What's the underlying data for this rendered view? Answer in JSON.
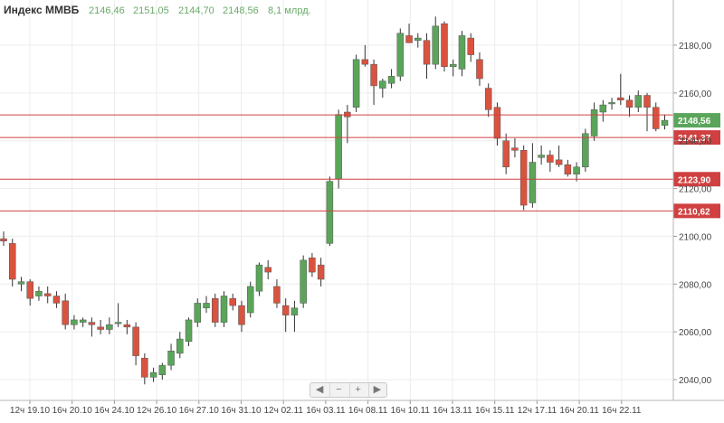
{
  "header": {
    "title": "Индекс ММВБ",
    "open": "2146,46",
    "high": "2151,05",
    "low": "2144,70",
    "close": "2148,56",
    "volume": "8,1 млрд."
  },
  "zoom_controls": {
    "left": "◀",
    "zoom_out": "−",
    "zoom_in": "+",
    "right": "▶"
  },
  "colors": {
    "up": "#5aa55a",
    "down": "#d9533f",
    "level_line": "#d04040",
    "last_price": "#5aa55a",
    "title": "#333333",
    "quote": "#6aaa6a"
  },
  "chart_data": {
    "type": "candlestick",
    "y_axis_side": "right",
    "ylim": [
      2035,
      2200
    ],
    "y_ticks": [
      2040,
      2060,
      2080,
      2100,
      2120,
      2140,
      2160,
      2180
    ],
    "y_tick_labels": [
      "2040,00",
      "2060,00",
      "2080,00",
      "2100,00",
      "2120,00",
      "2140,00",
      "2160,00",
      "2180,00"
    ],
    "x_tick_labels": [
      "12ч 19.10",
      "16ч 20.10",
      "16ч 24.10",
      "12ч 26.10",
      "16ч 27.10",
      "16ч 31.10",
      "12ч 02.11",
      "16ч 03.11",
      "16ч 08.11",
      "16ч 10.11",
      "16ч 13.11",
      "16ч 15.11",
      "12ч 17.11",
      "16ч 20.11",
      "16ч 22.11"
    ],
    "grid": true,
    "last_price": {
      "value": 2148.56,
      "label": "2148,56"
    },
    "levels": [
      {
        "value": 2141.37,
        "label": "2141,37"
      },
      {
        "value": 2123.9,
        "label": "2123,90"
      },
      {
        "value": 2110.62,
        "label": "2110,62"
      }
    ],
    "level_extra": {
      "value": 2150.8
    },
    "candles": [
      {
        "o": 2099,
        "h": 2102,
        "l": 2096,
        "c": 2098
      },
      {
        "o": 2097,
        "h": 2099,
        "l": 2079,
        "c": 2082
      },
      {
        "o": 2080,
        "h": 2083,
        "l": 2077,
        "c": 2081
      },
      {
        "o": 2081,
        "h": 2082,
        "l": 2071,
        "c": 2074
      },
      {
        "o": 2075,
        "h": 2079,
        "l": 2073,
        "c": 2077
      },
      {
        "o": 2076,
        "h": 2079,
        "l": 2072,
        "c": 2075
      },
      {
        "o": 2075,
        "h": 2077,
        "l": 2070,
        "c": 2072
      },
      {
        "o": 2073,
        "h": 2076,
        "l": 2061,
        "c": 2063
      },
      {
        "o": 2063,
        "h": 2067,
        "l": 2061,
        "c": 2065
      },
      {
        "o": 2064,
        "h": 2066,
        "l": 2062,
        "c": 2065
      },
      {
        "o": 2064,
        "h": 2066,
        "l": 2058,
        "c": 2063
      },
      {
        "o": 2062,
        "h": 2065,
        "l": 2059,
        "c": 2061
      },
      {
        "o": 2061,
        "h": 2066,
        "l": 2059,
        "c": 2063
      },
      {
        "o": 2064,
        "h": 2072,
        "l": 2062,
        "c": 2064
      },
      {
        "o": 2063,
        "h": 2065,
        "l": 2059,
        "c": 2062
      },
      {
        "o": 2062,
        "h": 2064,
        "l": 2046,
        "c": 2050
      },
      {
        "o": 2049,
        "h": 2051,
        "l": 2038,
        "c": 2041
      },
      {
        "o": 2041,
        "h": 2045,
        "l": 2039,
        "c": 2043
      },
      {
        "o": 2042,
        "h": 2047,
        "l": 2040,
        "c": 2046
      },
      {
        "o": 2046,
        "h": 2055,
        "l": 2044,
        "c": 2052
      },
      {
        "o": 2051,
        "h": 2060,
        "l": 2049,
        "c": 2057
      },
      {
        "o": 2056,
        "h": 2066,
        "l": 2054,
        "c": 2065
      },
      {
        "o": 2064,
        "h": 2074,
        "l": 2062,
        "c": 2072
      },
      {
        "o": 2070,
        "h": 2075,
        "l": 2068,
        "c": 2072
      },
      {
        "o": 2074,
        "h": 2076,
        "l": 2062,
        "c": 2064
      },
      {
        "o": 2064,
        "h": 2077,
        "l": 2062,
        "c": 2075
      },
      {
        "o": 2074,
        "h": 2076,
        "l": 2069,
        "c": 2071
      },
      {
        "o": 2071,
        "h": 2073,
        "l": 2060,
        "c": 2063
      },
      {
        "o": 2068,
        "h": 2081,
        "l": 2066,
        "c": 2079
      },
      {
        "o": 2077,
        "h": 2089,
        "l": 2075,
        "c": 2088
      },
      {
        "o": 2087,
        "h": 2090,
        "l": 2082,
        "c": 2085
      },
      {
        "o": 2079,
        "h": 2082,
        "l": 2070,
        "c": 2072
      },
      {
        "o": 2071,
        "h": 2074,
        "l": 2060,
        "c": 2067
      },
      {
        "o": 2067,
        "h": 2073,
        "l": 2060,
        "c": 2070
      },
      {
        "o": 2072,
        "h": 2092,
        "l": 2070,
        "c": 2090
      },
      {
        "o": 2091,
        "h": 2093,
        "l": 2083,
        "c": 2085
      },
      {
        "o": 2088,
        "h": 2091,
        "l": 2079,
        "c": 2082
      },
      {
        "o": 2097,
        "h": 2125,
        "l": 2096,
        "c": 2123
      },
      {
        "o": 2124,
        "h": 2153,
        "l": 2120,
        "c": 2151
      },
      {
        "o": 2152,
        "h": 2155,
        "l": 2139,
        "c": 2150
      },
      {
        "o": 2154,
        "h": 2176,
        "l": 2152,
        "c": 2174
      },
      {
        "o": 2174,
        "h": 2180,
        "l": 2171,
        "c": 2172
      },
      {
        "o": 2172,
        "h": 2174,
        "l": 2155,
        "c": 2163
      },
      {
        "o": 2162,
        "h": 2166,
        "l": 2158,
        "c": 2165
      },
      {
        "o": 2164,
        "h": 2170,
        "l": 2162,
        "c": 2167
      },
      {
        "o": 2167,
        "h": 2187,
        "l": 2165,
        "c": 2185
      },
      {
        "o": 2184,
        "h": 2189,
        "l": 2181,
        "c": 2181
      },
      {
        "o": 2182,
        "h": 2185,
        "l": 2179,
        "c": 2183
      },
      {
        "o": 2182,
        "h": 2185,
        "l": 2166,
        "c": 2172
      },
      {
        "o": 2172,
        "h": 2192,
        "l": 2170,
        "c": 2188
      },
      {
        "o": 2189,
        "h": 2190,
        "l": 2169,
        "c": 2171
      },
      {
        "o": 2171,
        "h": 2174,
        "l": 2167,
        "c": 2172
      },
      {
        "o": 2170,
        "h": 2186,
        "l": 2167,
        "c": 2184
      },
      {
        "o": 2183,
        "h": 2185,
        "l": 2173,
        "c": 2176
      },
      {
        "o": 2174,
        "h": 2177,
        "l": 2163,
        "c": 2166
      },
      {
        "o": 2162,
        "h": 2164,
        "l": 2150,
        "c": 2153
      },
      {
        "o": 2154,
        "h": 2156,
        "l": 2138,
        "c": 2141
      },
      {
        "o": 2140,
        "h": 2143,
        "l": 2126,
        "c": 2129
      },
      {
        "o": 2137,
        "h": 2141,
        "l": 2133,
        "c": 2136
      },
      {
        "o": 2136,
        "h": 2138,
        "l": 2111,
        "c": 2113
      },
      {
        "o": 2114,
        "h": 2139,
        "l": 2112,
        "c": 2131
      },
      {
        "o": 2133,
        "h": 2138,
        "l": 2130,
        "c": 2134
      },
      {
        "o": 2134,
        "h": 2136,
        "l": 2127,
        "c": 2131
      },
      {
        "o": 2132,
        "h": 2138,
        "l": 2129,
        "c": 2130
      },
      {
        "o": 2130,
        "h": 2132,
        "l": 2125,
        "c": 2126
      },
      {
        "o": 2126,
        "h": 2131,
        "l": 2123,
        "c": 2129
      },
      {
        "o": 2129,
        "h": 2145,
        "l": 2127,
        "c": 2143
      },
      {
        "o": 2142,
        "h": 2156,
        "l": 2140,
        "c": 2153
      },
      {
        "o": 2152,
        "h": 2157,
        "l": 2148,
        "c": 2155
      },
      {
        "o": 2156,
        "h": 2158,
        "l": 2153,
        "c": 2156
      },
      {
        "o": 2158,
        "h": 2168,
        "l": 2155,
        "c": 2157
      },
      {
        "o": 2157,
        "h": 2159,
        "l": 2150,
        "c": 2154
      },
      {
        "o": 2154,
        "h": 2161,
        "l": 2152,
        "c": 2159
      },
      {
        "o": 2159,
        "h": 2160,
        "l": 2144,
        "c": 2154
      },
      {
        "o": 2154,
        "h": 2156,
        "l": 2144,
        "c": 2145
      },
      {
        "o": 2146.46,
        "h": 2151.05,
        "l": 2144.7,
        "c": 2148.56
      }
    ]
  }
}
